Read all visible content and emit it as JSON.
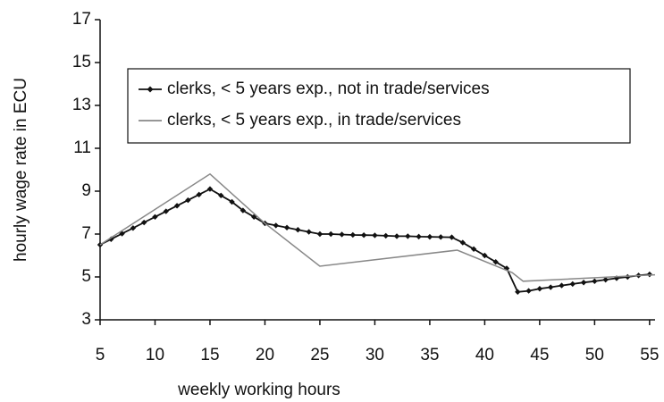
{
  "chart_data": {
    "type": "line",
    "xlabel": "weekly working hours",
    "ylabel": "hourly wage rate in ECU",
    "xlim": [
      5,
      55.5
    ],
    "xticks": [
      5,
      10,
      15,
      20,
      25,
      30,
      35,
      40,
      45,
      50,
      55
    ],
    "ylim": [
      3,
      17
    ],
    "yticks": [
      3,
      5,
      7,
      9,
      11,
      13,
      15,
      17
    ],
    "grid": false,
    "legend": "upper center",
    "series": [
      {
        "name": "clerks, < 5 years exp., not in trade/services",
        "color": "#111111",
        "marker": "diamond",
        "x": [
          5,
          6,
          7,
          8,
          9,
          10,
          11,
          12,
          13,
          14,
          15,
          16,
          17,
          18,
          19,
          20,
          21,
          22,
          23,
          24,
          25,
          26,
          27,
          28,
          29,
          30,
          31,
          32,
          33,
          34,
          35,
          36,
          37,
          38,
          39,
          40,
          41,
          42,
          43,
          44,
          45,
          46,
          47,
          48,
          49,
          50,
          51,
          52,
          53,
          54,
          55
        ],
        "values": [
          6.5,
          6.76,
          7.02,
          7.28,
          7.54,
          7.8,
          8.06,
          8.32,
          8.58,
          8.84,
          9.1,
          8.8,
          8.5,
          8.1,
          7.8,
          7.5,
          7.4,
          7.3,
          7.2,
          7.1,
          7.0,
          7.0,
          6.98,
          6.96,
          6.95,
          6.94,
          6.92,
          6.9,
          6.9,
          6.88,
          6.87,
          6.86,
          6.85,
          6.6,
          6.3,
          6.0,
          5.7,
          5.4,
          4.3,
          4.35,
          4.45,
          4.52,
          4.6,
          4.67,
          4.74,
          4.8,
          4.87,
          4.94,
          5.0,
          5.07,
          5.12
        ]
      },
      {
        "name": "clerks, < 5 years exp., in trade/services",
        "color": "#888888",
        "marker": "none",
        "x": [
          5,
          15,
          20,
          25,
          37.5,
          42.5,
          43.5,
          55.5
        ],
        "values": [
          6.5,
          9.8,
          7.5,
          5.5,
          6.25,
          5.2,
          4.8,
          5.1
        ]
      }
    ]
  }
}
